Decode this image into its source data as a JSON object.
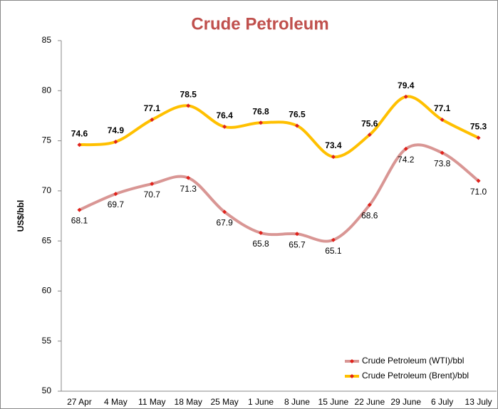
{
  "chart_data": {
    "type": "line",
    "title": "Crude Petroleum",
    "y_label": "US$/bbl",
    "categories": [
      "27 Apr",
      "4 May",
      "11 May",
      "18 May",
      "25 May",
      "1 June",
      "8 June",
      "15 June",
      "22 June",
      "29 June",
      "6 July",
      "13 July"
    ],
    "series": [
      {
        "name": "Crude Petroleum (WTI)/bbl",
        "color": "#d99694",
        "marker_color": "#e0221b",
        "values": [
          68.1,
          69.7,
          70.7,
          71.3,
          67.9,
          65.8,
          65.7,
          65.1,
          68.6,
          74.2,
          73.8,
          71.0
        ],
        "value_labels": [
          "68.1",
          "69.7",
          "70.7",
          "71.3",
          "67.9",
          "65.8",
          "65.7",
          "65.1",
          "68.6",
          "74.2",
          "73.8",
          "71.0"
        ]
      },
      {
        "name": "Crude Petroleum (Brent)/bbl",
        "color": "#ffc000",
        "marker_color": "#e0221b",
        "values": [
          74.6,
          74.9,
          77.1,
          78.5,
          76.4,
          76.8,
          76.5,
          73.4,
          75.6,
          79.4,
          77.1,
          75.3
        ],
        "value_labels": [
          "74.6",
          "74.9",
          "77.1",
          "78.5",
          "76.4",
          "76.8",
          "76.5",
          "73.4",
          "75.6",
          "79.4",
          "77.1",
          "75.3"
        ]
      }
    ],
    "ylim": [
      50,
      85
    ],
    "yticks": [
      50,
      55,
      60,
      65,
      70,
      75,
      80,
      85
    ],
    "grid": false,
    "legend": "bottom-right"
  }
}
